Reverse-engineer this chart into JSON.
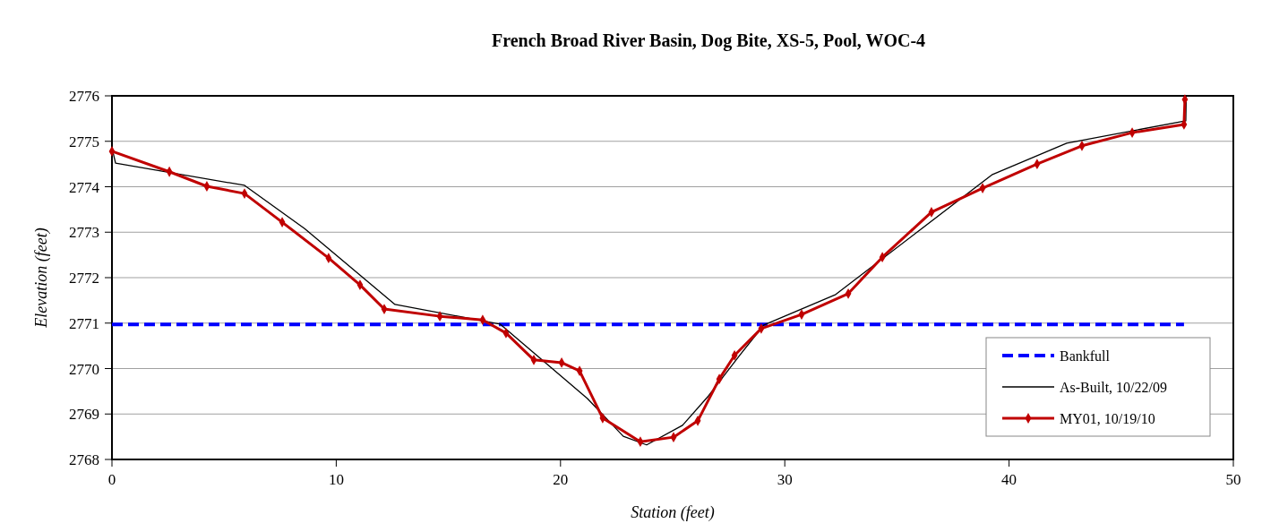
{
  "chart_data": {
    "type": "line",
    "title": "French Broad River Basin, Dog Bite, XS-5, Pool, WOC-4",
    "xlabel": "Station (feet)",
    "ylabel": "Elevation (feet)",
    "xlim": [
      0,
      50
    ],
    "xticks": [
      0,
      10,
      20,
      30,
      40,
      50
    ],
    "ylim": [
      2768,
      2776
    ],
    "yticks": [
      2768,
      2769,
      2770,
      2771,
      2772,
      2773,
      2774,
      2775,
      2776
    ],
    "grid": "y",
    "legend": "bottom right",
    "series": [
      {
        "name": "Bankfull",
        "color": "#0000ff",
        "line_style": "dashed",
        "marker": "none",
        "x": [
          0,
          47.8
        ],
        "values": [
          2770.97,
          2770.97
        ]
      },
      {
        "name": "As-Built, 10/22/09",
        "color": "#000000",
        "line_style": "solid",
        "marker": "none",
        "x": [
          0,
          0.16,
          5.91,
          8.59,
          12.62,
          17.3,
          21.2,
          22.8,
          23.84,
          25.44,
          26.6,
          28.0,
          29.07,
          32.27,
          39.26,
          42.57,
          47.88,
          47.9
        ],
        "values": [
          2774.86,
          2774.52,
          2774.03,
          2773.08,
          2771.41,
          2770.98,
          2769.34,
          2768.51,
          2768.32,
          2768.75,
          2769.4,
          2770.3,
          2770.96,
          2771.63,
          2774.27,
          2774.96,
          2775.45,
          2776.0
        ]
      },
      {
        "name": "MY01, 10/19/10",
        "color": "#c00000",
        "line_style": "solid",
        "marker": "diamond",
        "x": [
          0,
          2.56,
          4.23,
          5.91,
          7.59,
          9.66,
          11.06,
          12.14,
          14.62,
          16.53,
          17.57,
          18.81,
          20.05,
          20.85,
          21.88,
          23.56,
          25.04,
          26.12,
          27.08,
          27.76,
          28.95,
          30.75,
          32.83,
          34.35,
          36.54,
          38.82,
          41.25,
          43.25,
          45.49,
          47.8,
          47.84
        ],
        "values": [
          2774.78,
          2774.33,
          2774.01,
          2773.85,
          2773.22,
          2772.43,
          2771.84,
          2771.31,
          2771.15,
          2771.07,
          2770.78,
          2770.19,
          2770.13,
          2769.95,
          2768.91,
          2768.39,
          2768.49,
          2768.85,
          2769.77,
          2770.29,
          2770.88,
          2771.19,
          2771.65,
          2772.45,
          2773.44,
          2773.97,
          2774.5,
          2774.9,
          2775.19,
          2775.37,
          2775.92
        ]
      }
    ]
  }
}
